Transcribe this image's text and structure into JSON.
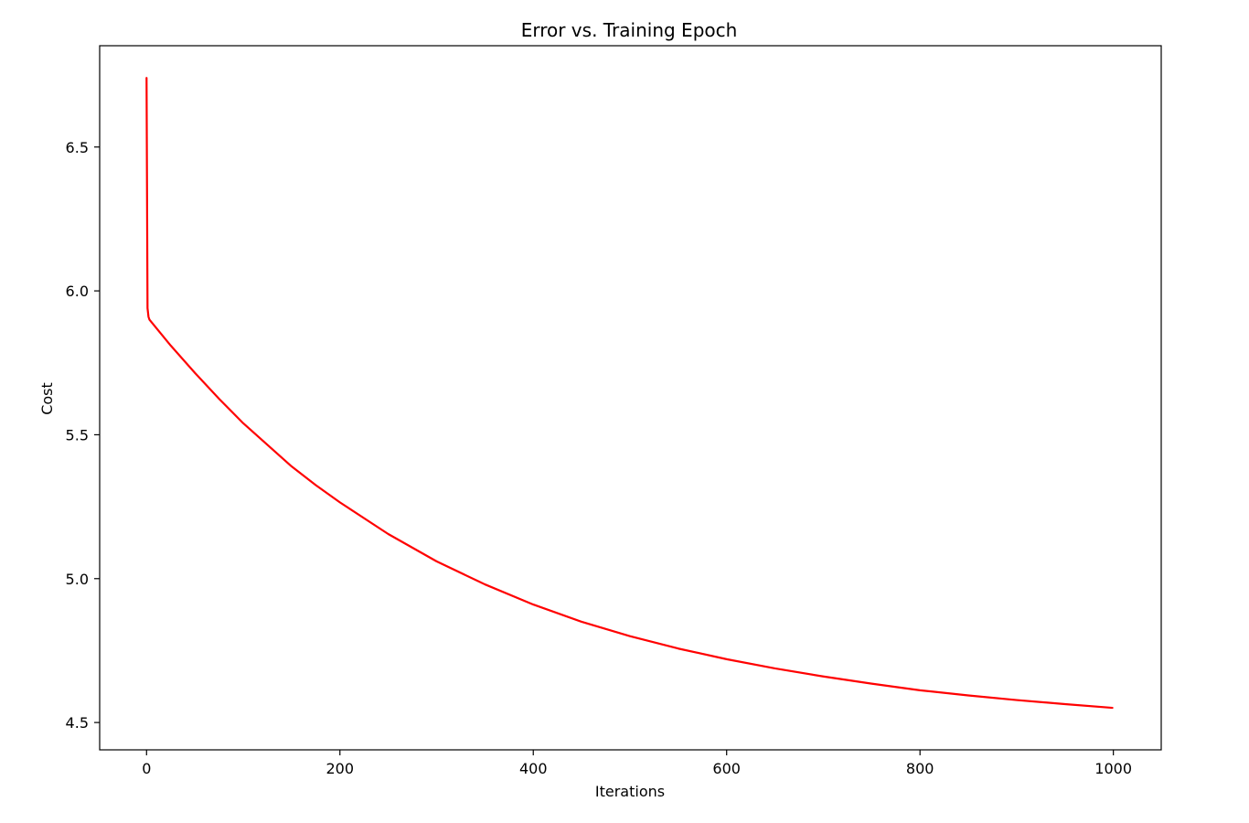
{
  "chart_data": {
    "type": "line",
    "title": "Error vs. Training Epoch",
    "xlabel": "Iterations",
    "ylabel": "Cost",
    "xlim": [
      -48.5,
      1049.5
    ],
    "ylim": [
      4.405,
      6.852
    ],
    "xticks": [
      0,
      200,
      400,
      600,
      800,
      1000
    ],
    "xtick_labels": [
      "0",
      "200",
      "400",
      "600",
      "800",
      "1000"
    ],
    "yticks": [
      4.5,
      5.0,
      5.5,
      6.0,
      6.5
    ],
    "ytick_labels": [
      "4.5",
      "5.0",
      "5.5",
      "6.0",
      "6.5"
    ],
    "grid": false,
    "legend": "none",
    "series": [
      {
        "color": "#ff0000",
        "x": [
          0,
          1,
          2,
          3,
          25,
          50,
          75,
          100,
          125,
          150,
          175,
          200,
          250,
          300,
          350,
          400,
          450,
          500,
          550,
          600,
          650,
          700,
          750,
          800,
          850,
          900,
          950,
          999
        ],
        "y": [
          6.74,
          5.94,
          5.91,
          5.9,
          5.81,
          5.715,
          5.625,
          5.54,
          5.465,
          5.39,
          5.325,
          5.265,
          5.155,
          5.06,
          4.98,
          4.91,
          4.85,
          4.8,
          4.757,
          4.72,
          4.688,
          4.66,
          4.635,
          4.612,
          4.594,
          4.578,
          4.564,
          4.551
        ]
      }
    ]
  }
}
